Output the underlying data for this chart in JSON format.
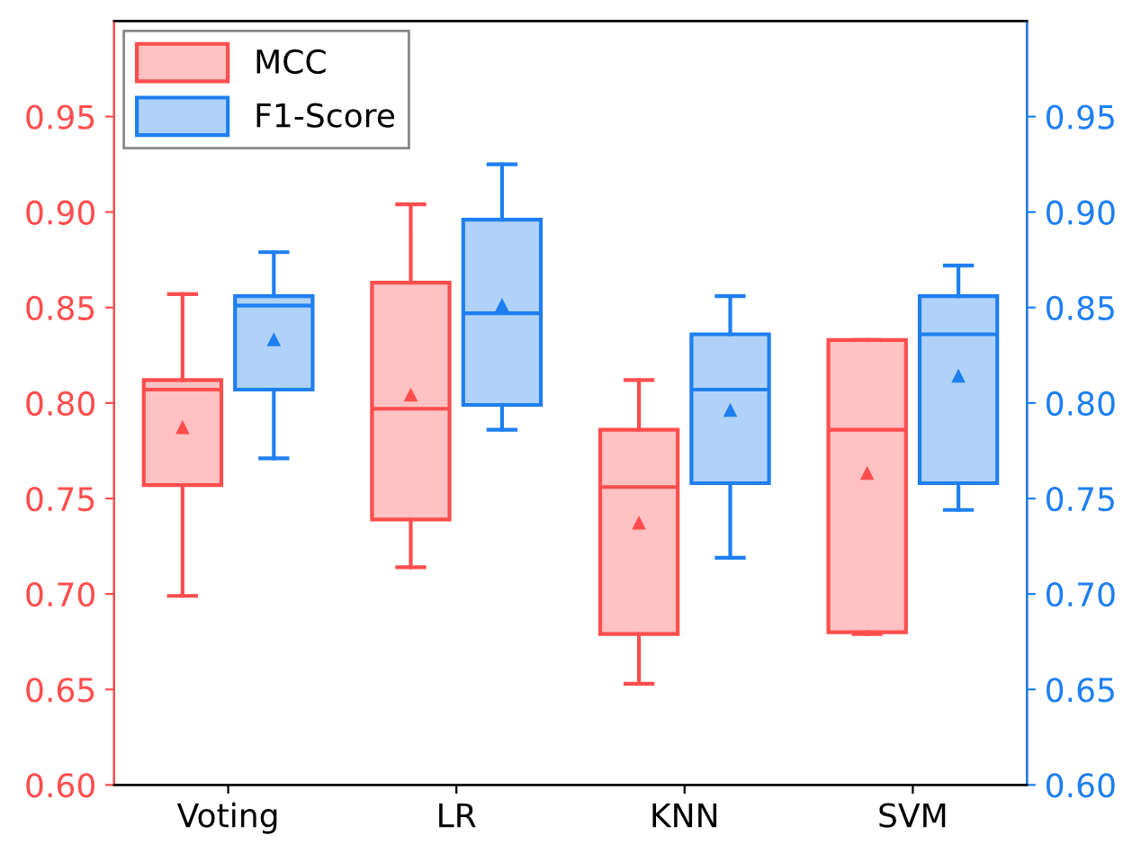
{
  "chart_data": {
    "type": "box",
    "categories": [
      "Voting",
      "LR",
      "KNN",
      "SVM"
    ],
    "ylim": [
      0.6,
      1.0
    ],
    "yticks": [
      {
        "value": 0.6,
        "label": "0.60"
      },
      {
        "value": 0.65,
        "label": "0.65"
      },
      {
        "value": 0.7,
        "label": "0.70"
      },
      {
        "value": 0.75,
        "label": "0.75"
      },
      {
        "value": 0.8,
        "label": "0.80"
      },
      {
        "value": 0.85,
        "label": "0.85"
      },
      {
        "value": 0.9,
        "label": "0.90"
      },
      {
        "value": 0.95,
        "label": "0.95"
      }
    ],
    "y2lim": [
      0.6,
      1.0
    ],
    "y2ticks": [
      {
        "value": 0.6,
        "label": "0.60"
      },
      {
        "value": 0.65,
        "label": "0.65"
      },
      {
        "value": 0.7,
        "label": "0.70"
      },
      {
        "value": 0.75,
        "label": "0.75"
      },
      {
        "value": 0.8,
        "label": "0.80"
      },
      {
        "value": 0.85,
        "label": "0.85"
      },
      {
        "value": 0.9,
        "label": "0.90"
      },
      {
        "value": 0.95,
        "label": "0.95"
      }
    ],
    "grid": false,
    "legend": "top left",
    "marker": "triangle",
    "series": [
      {
        "name": "MCC",
        "color": "#ff4d4d",
        "boxes": [
          {
            "low": 0.699,
            "q1": 0.757,
            "median": 0.807,
            "q3": 0.812,
            "high": 0.857,
            "mean": 0.787
          },
          {
            "low": 0.714,
            "q1": 0.739,
            "median": 0.797,
            "q3": 0.863,
            "high": 0.904,
            "mean": 0.804
          },
          {
            "low": 0.653,
            "q1": 0.679,
            "median": 0.756,
            "q3": 0.786,
            "high": 0.812,
            "mean": 0.737
          },
          {
            "low": 0.679,
            "q1": 0.68,
            "median": 0.786,
            "q3": 0.833,
            "high": 0.833,
            "mean": 0.763
          }
        ]
      },
      {
        "name": "F1-Score",
        "color": "#1e7ff0",
        "boxes": [
          {
            "low": 0.771,
            "q1": 0.807,
            "median": 0.851,
            "q3": 0.856,
            "high": 0.879,
            "mean": 0.833
          },
          {
            "low": 0.786,
            "q1": 0.799,
            "median": 0.847,
            "q3": 0.896,
            "high": 0.925,
            "mean": 0.851
          },
          {
            "low": 0.719,
            "q1": 0.758,
            "median": 0.807,
            "q3": 0.836,
            "high": 0.856,
            "mean": 0.796
          },
          {
            "low": 0.744,
            "q1": 0.758,
            "median": 0.836,
            "q3": 0.856,
            "high": 0.872,
            "mean": 0.814
          }
        ]
      }
    ]
  }
}
